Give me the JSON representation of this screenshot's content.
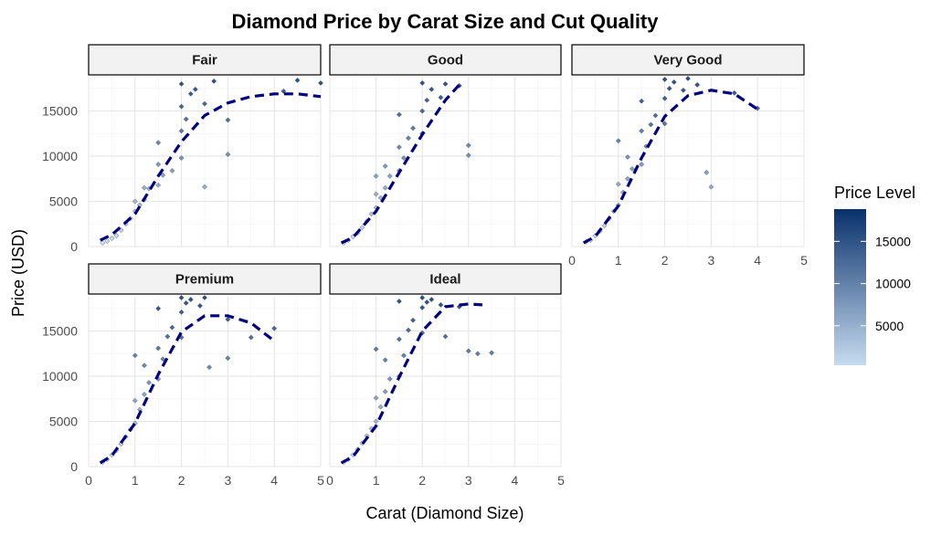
{
  "chart_data": {
    "type": "scatter",
    "title": "Diamond Price by Carat Size and Cut Quality",
    "xlabel": "Carat (Diamond Size)",
    "ylabel": "Price (USD)",
    "xlim": [
      0,
      5
    ],
    "ylim": [
      0,
      18800
    ],
    "xticks": [
      0,
      1,
      2,
      3,
      4,
      5
    ],
    "yticks": [
      0,
      5000,
      10000,
      15000
    ],
    "facet_by": "cut",
    "grid": true,
    "legend": {
      "title": "Price Level",
      "position": "right",
      "type": "colorbar",
      "ticks": [
        5000,
        10000,
        15000
      ],
      "range": [
        326,
        18823
      ],
      "low_color": "#c6dbef",
      "high_color": "#08306b"
    },
    "trend_color": "#000080",
    "facets": [
      {
        "name": "Fair",
        "trend": [
          [
            0.25,
            700
          ],
          [
            0.5,
            1300
          ],
          [
            1.0,
            3600
          ],
          [
            1.5,
            7800
          ],
          [
            2.0,
            11600
          ],
          [
            2.5,
            14500
          ],
          [
            3.0,
            15900
          ],
          [
            3.5,
            16600
          ],
          [
            4.0,
            16900
          ],
          [
            4.5,
            16900
          ],
          [
            5.0,
            16600
          ]
        ],
        "points": [
          [
            0.3,
            400
          ],
          [
            0.4,
            600
          ],
          [
            0.5,
            900
          ],
          [
            0.6,
            1200
          ],
          [
            0.7,
            1800
          ],
          [
            0.8,
            2500
          ],
          [
            0.9,
            3100
          ],
          [
            1.0,
            3900
          ],
          [
            1.0,
            5000
          ],
          [
            1.1,
            4600
          ],
          [
            1.2,
            5200
          ],
          [
            1.2,
            6500
          ],
          [
            1.3,
            6400
          ],
          [
            1.5,
            6800
          ],
          [
            1.5,
            9100
          ],
          [
            1.5,
            11500
          ],
          [
            1.6,
            7900
          ],
          [
            1.8,
            8400
          ],
          [
            2.0,
            9800
          ],
          [
            2.0,
            12800
          ],
          [
            2.0,
            15500
          ],
          [
            2.0,
            18000
          ],
          [
            2.1,
            14100
          ],
          [
            2.2,
            16900
          ],
          [
            2.3,
            17400
          ],
          [
            2.5,
            6600
          ],
          [
            2.5,
            15800
          ],
          [
            2.7,
            18300
          ],
          [
            3.0,
            14000
          ],
          [
            3.0,
            10200
          ],
          [
            4.2,
            17200
          ],
          [
            4.5,
            18400
          ],
          [
            5.0,
            18100
          ]
        ]
      },
      {
        "name": "Good",
        "trend": [
          [
            0.25,
            400
          ],
          [
            0.5,
            1000
          ],
          [
            1.0,
            3900
          ],
          [
            1.5,
            8200
          ],
          [
            2.0,
            12400
          ],
          [
            2.5,
            16200
          ],
          [
            2.8,
            17900
          ]
        ],
        "points": [
          [
            0.3,
            400
          ],
          [
            0.4,
            700
          ],
          [
            0.5,
            1100
          ],
          [
            0.6,
            1500
          ],
          [
            0.7,
            2100
          ],
          [
            0.8,
            2800
          ],
          [
            0.9,
            3600
          ],
          [
            1.0,
            4300
          ],
          [
            1.0,
            5800
          ],
          [
            1.0,
            7800
          ],
          [
            1.1,
            5400
          ],
          [
            1.2,
            6500
          ],
          [
            1.2,
            8900
          ],
          [
            1.3,
            7800
          ],
          [
            1.5,
            8400
          ],
          [
            1.5,
            11000
          ],
          [
            1.5,
            14600
          ],
          [
            1.6,
            9800
          ],
          [
            1.7,
            12000
          ],
          [
            1.8,
            13100
          ],
          [
            2.0,
            12500
          ],
          [
            2.0,
            15000
          ],
          [
            2.0,
            18100
          ],
          [
            2.1,
            16200
          ],
          [
            2.2,
            17400
          ],
          [
            2.4,
            16500
          ],
          [
            2.5,
            18000
          ],
          [
            2.8,
            17800
          ],
          [
            3.0,
            10100
          ],
          [
            3.0,
            11200
          ]
        ]
      },
      {
        "name": "Very Good",
        "trend": [
          [
            0.25,
            400
          ],
          [
            0.5,
            1100
          ],
          [
            1.0,
            4500
          ],
          [
            1.5,
            9800
          ],
          [
            2.0,
            14400
          ],
          [
            2.5,
            16700
          ],
          [
            3.0,
            17300
          ],
          [
            3.5,
            16900
          ],
          [
            4.0,
            15200
          ]
        ],
        "points": [
          [
            0.3,
            500
          ],
          [
            0.4,
            700
          ],
          [
            0.5,
            1200
          ],
          [
            0.6,
            1700
          ],
          [
            0.7,
            2300
          ],
          [
            0.8,
            3100
          ],
          [
            0.9,
            3900
          ],
          [
            1.0,
            4600
          ],
          [
            1.0,
            6900
          ],
          [
            1.0,
            11700
          ],
          [
            1.1,
            6000
          ],
          [
            1.2,
            7500
          ],
          [
            1.2,
            9900
          ],
          [
            1.3,
            8600
          ],
          [
            1.5,
            9100
          ],
          [
            1.5,
            12800
          ],
          [
            1.5,
            16100
          ],
          [
            1.6,
            11100
          ],
          [
            1.7,
            13500
          ],
          [
            1.8,
            14500
          ],
          [
            2.0,
            13600
          ],
          [
            2.0,
            16400
          ],
          [
            2.0,
            18500
          ],
          [
            2.1,
            17500
          ],
          [
            2.2,
            18200
          ],
          [
            2.4,
            17300
          ],
          [
            2.5,
            18600
          ],
          [
            2.7,
            17900
          ],
          [
            2.9,
            8200
          ],
          [
            3.0,
            6600
          ],
          [
            3.5,
            17000
          ],
          [
            4.0,
            15300
          ]
        ]
      },
      {
        "name": "Premium",
        "trend": [
          [
            0.25,
            400
          ],
          [
            0.5,
            1200
          ],
          [
            1.0,
            4800
          ],
          [
            1.5,
            10200
          ],
          [
            2.0,
            14900
          ],
          [
            2.5,
            16700
          ],
          [
            3.0,
            16700
          ],
          [
            3.5,
            15900
          ],
          [
            4.0,
            13900
          ]
        ],
        "points": [
          [
            0.3,
            500
          ],
          [
            0.4,
            800
          ],
          [
            0.5,
            1300
          ],
          [
            0.6,
            1800
          ],
          [
            0.7,
            2500
          ],
          [
            0.8,
            3300
          ],
          [
            0.9,
            4100
          ],
          [
            1.0,
            4800
          ],
          [
            1.0,
            7300
          ],
          [
            1.0,
            12300
          ],
          [
            1.1,
            6300
          ],
          [
            1.2,
            8000
          ],
          [
            1.2,
            11200
          ],
          [
            1.3,
            9300
          ],
          [
            1.5,
            9700
          ],
          [
            1.5,
            13100
          ],
          [
            1.5,
            17500
          ],
          [
            1.6,
            11900
          ],
          [
            1.7,
            14400
          ],
          [
            1.8,
            15400
          ],
          [
            2.0,
            14300
          ],
          [
            2.0,
            17100
          ],
          [
            2.0,
            18700
          ],
          [
            2.1,
            18100
          ],
          [
            2.2,
            18500
          ],
          [
            2.4,
            17800
          ],
          [
            2.5,
            18700
          ],
          [
            2.6,
            11000
          ],
          [
            3.0,
            16300
          ],
          [
            3.0,
            12000
          ],
          [
            3.5,
            14300
          ],
          [
            4.0,
            15300
          ]
        ]
      },
      {
        "name": "Ideal",
        "trend": [
          [
            0.25,
            400
          ],
          [
            0.5,
            1100
          ],
          [
            1.0,
            4500
          ],
          [
            1.5,
            9900
          ],
          [
            2.0,
            15000
          ],
          [
            2.5,
            17700
          ],
          [
            3.0,
            18000
          ],
          [
            3.3,
            17900
          ]
        ],
        "points": [
          [
            0.3,
            500
          ],
          [
            0.4,
            800
          ],
          [
            0.5,
            1300
          ],
          [
            0.6,
            1900
          ],
          [
            0.7,
            2600
          ],
          [
            0.8,
            3400
          ],
          [
            0.9,
            4200
          ],
          [
            1.0,
            5000
          ],
          [
            1.0,
            7600
          ],
          [
            1.0,
            13000
          ],
          [
            1.1,
            6600
          ],
          [
            1.2,
            8300
          ],
          [
            1.2,
            11800
          ],
          [
            1.3,
            9700
          ],
          [
            1.5,
            10000
          ],
          [
            1.5,
            14100
          ],
          [
            1.5,
            18300
          ],
          [
            1.6,
            12300
          ],
          [
            1.7,
            15100
          ],
          [
            1.8,
            16200
          ],
          [
            2.0,
            14800
          ],
          [
            2.0,
            17600
          ],
          [
            2.0,
            18700
          ],
          [
            2.1,
            18200
          ],
          [
            2.2,
            18500
          ],
          [
            2.4,
            17900
          ],
          [
            2.5,
            14400
          ],
          [
            2.8,
            17700
          ],
          [
            3.0,
            12800
          ],
          [
            3.2,
            12500
          ],
          [
            3.5,
            12600
          ]
        ]
      }
    ]
  }
}
